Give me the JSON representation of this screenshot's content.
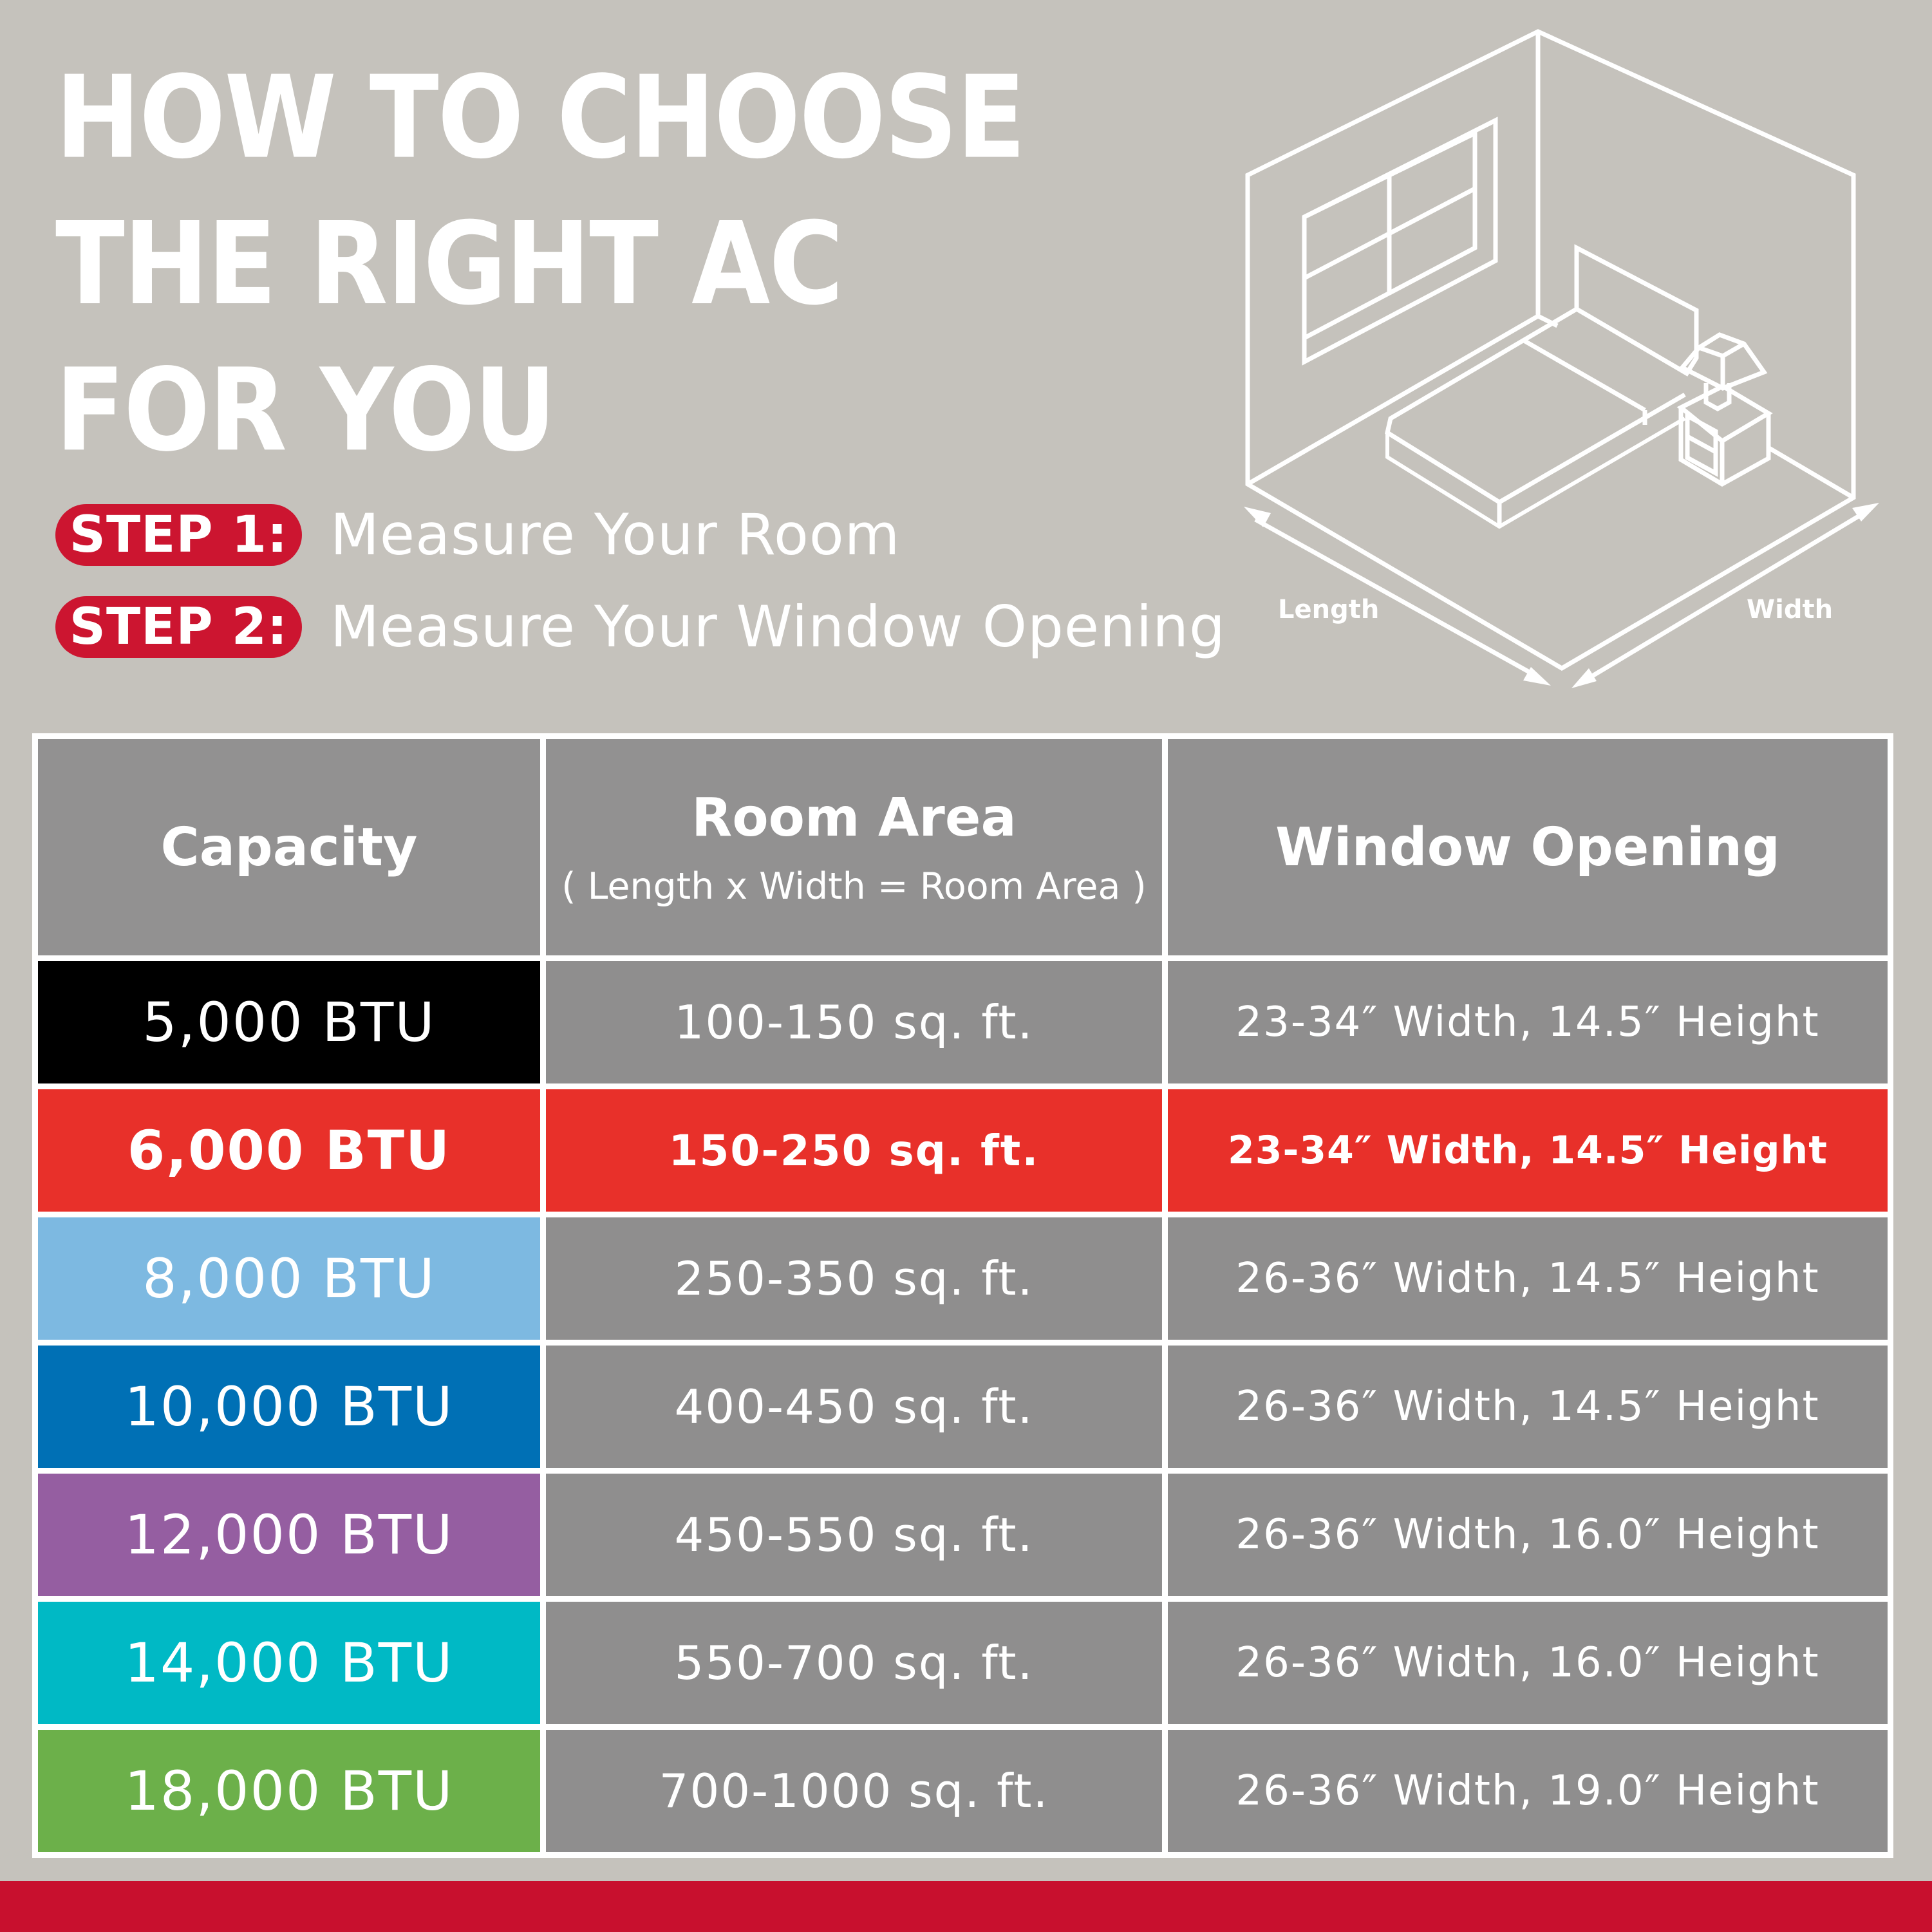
{
  "title": {
    "lines": [
      "HOW TO CHOOSE",
      "THE RIGHT AC",
      "FOR YOU"
    ]
  },
  "steps": [
    {
      "badge": "STEP 1:",
      "text": "Measure Your Room"
    },
    {
      "badge": "STEP 2:",
      "text": "Measure Your Window Opening"
    }
  ],
  "illustration": {
    "length_label": "Length",
    "width_label": "Width"
  },
  "table": {
    "headers": {
      "capacity": "Capacity",
      "room_area": "Room Area",
      "room_area_sub": "( Length x Width = Room Area )",
      "window_opening": "Window Opening"
    },
    "rows": [
      {
        "capacity": "5,000 BTU",
        "area": "100-150 sq. ft.",
        "window": "23-34″ Width, 14.5″ Height",
        "color": "#000000",
        "highlight": false
      },
      {
        "capacity": "6,000 BTU",
        "area": "150-250 sq. ft.",
        "window": "23-34″ Width, 14.5″ Height",
        "color": "#e8302a",
        "highlight": true
      },
      {
        "capacity": "8,000 BTU",
        "area": "250-350 sq. ft.",
        "window": "26-36″ Width, 14.5″ Height",
        "color": "#7db9e1",
        "highlight": false
      },
      {
        "capacity": "10,000 BTU",
        "area": "400-450 sq. ft.",
        "window": "26-36″ Width, 14.5″ Height",
        "color": "#0070b5",
        "highlight": false
      },
      {
        "capacity": "12,000 BTU",
        "area": "450-550 sq. ft.",
        "window": "26-36″ Width, 16.0″ Height",
        "color": "#955ea1",
        "highlight": false
      },
      {
        "capacity": "14,000 BTU",
        "area": "550-700 sq. ft.",
        "window": "26-36″ Width, 16.0″ Height",
        "color": "#00b9c5",
        "highlight": false
      },
      {
        "capacity": "18,000 BTU",
        "area": "700-1000 sq. ft.",
        "window": "26-36″ Width, 19.0″ Height",
        "color": "#6cb04a",
        "highlight": false
      }
    ]
  },
  "colors": {
    "background": "#c5c2bc",
    "accent_red": "#c8102e",
    "highlight_red": "#e8302a",
    "cell_gray": "#8f8e8e"
  }
}
